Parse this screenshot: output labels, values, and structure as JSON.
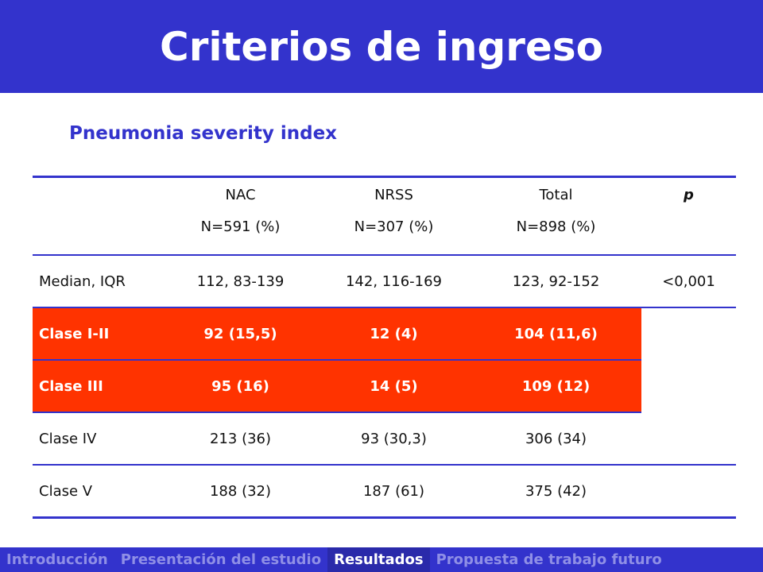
{
  "title": "Criterios de ingreso",
  "subtitle": "Pneumonia severity index",
  "table": {
    "headers": [
      {
        "line1": "",
        "line2": ""
      },
      {
        "line1": "NAC",
        "line2": "N=591 (%)"
      },
      {
        "line1": "NRSS",
        "line2": "N=307 (%)"
      },
      {
        "line1": "Total",
        "line2": "N=898 (%)"
      },
      {
        "line1": "p",
        "line2": ""
      }
    ],
    "rows": [
      {
        "label": "Median, IQR",
        "nac": "112, 83-139",
        "nrss": "142, 116-169",
        "total": "123, 92-152",
        "p": "<0,001",
        "highlight": false
      },
      {
        "label": "Clase I-II",
        "nac": "92 (15,5)",
        "nrss": "12 (4)",
        "total": "104 (11,6)",
        "p": "",
        "highlight": true
      },
      {
        "label": "Clase III",
        "nac": "95 (16)",
        "nrss": "14 (5)",
        "total": "109 (12)",
        "p": "",
        "highlight": true
      },
      {
        "label": "Clase IV",
        "nac": "213 (36)",
        "nrss": "93 (30,3)",
        "total": "306 (34)",
        "p": "",
        "highlight": false
      },
      {
        "label": "Clase V",
        "nac": "188 (32)",
        "nrss": "187 (61)",
        "total": "375 (42)",
        "p": "",
        "highlight": false
      }
    ]
  },
  "nav": {
    "items": [
      "Introducción",
      "Presentación del estudio",
      "Resultados",
      "Propuesta de trabajo futuro"
    ],
    "active_index": 2
  },
  "colors": {
    "brand_blue": "#3333cc",
    "highlight_red": "#ff3300",
    "nav_inactive": "#8f8fe6"
  }
}
